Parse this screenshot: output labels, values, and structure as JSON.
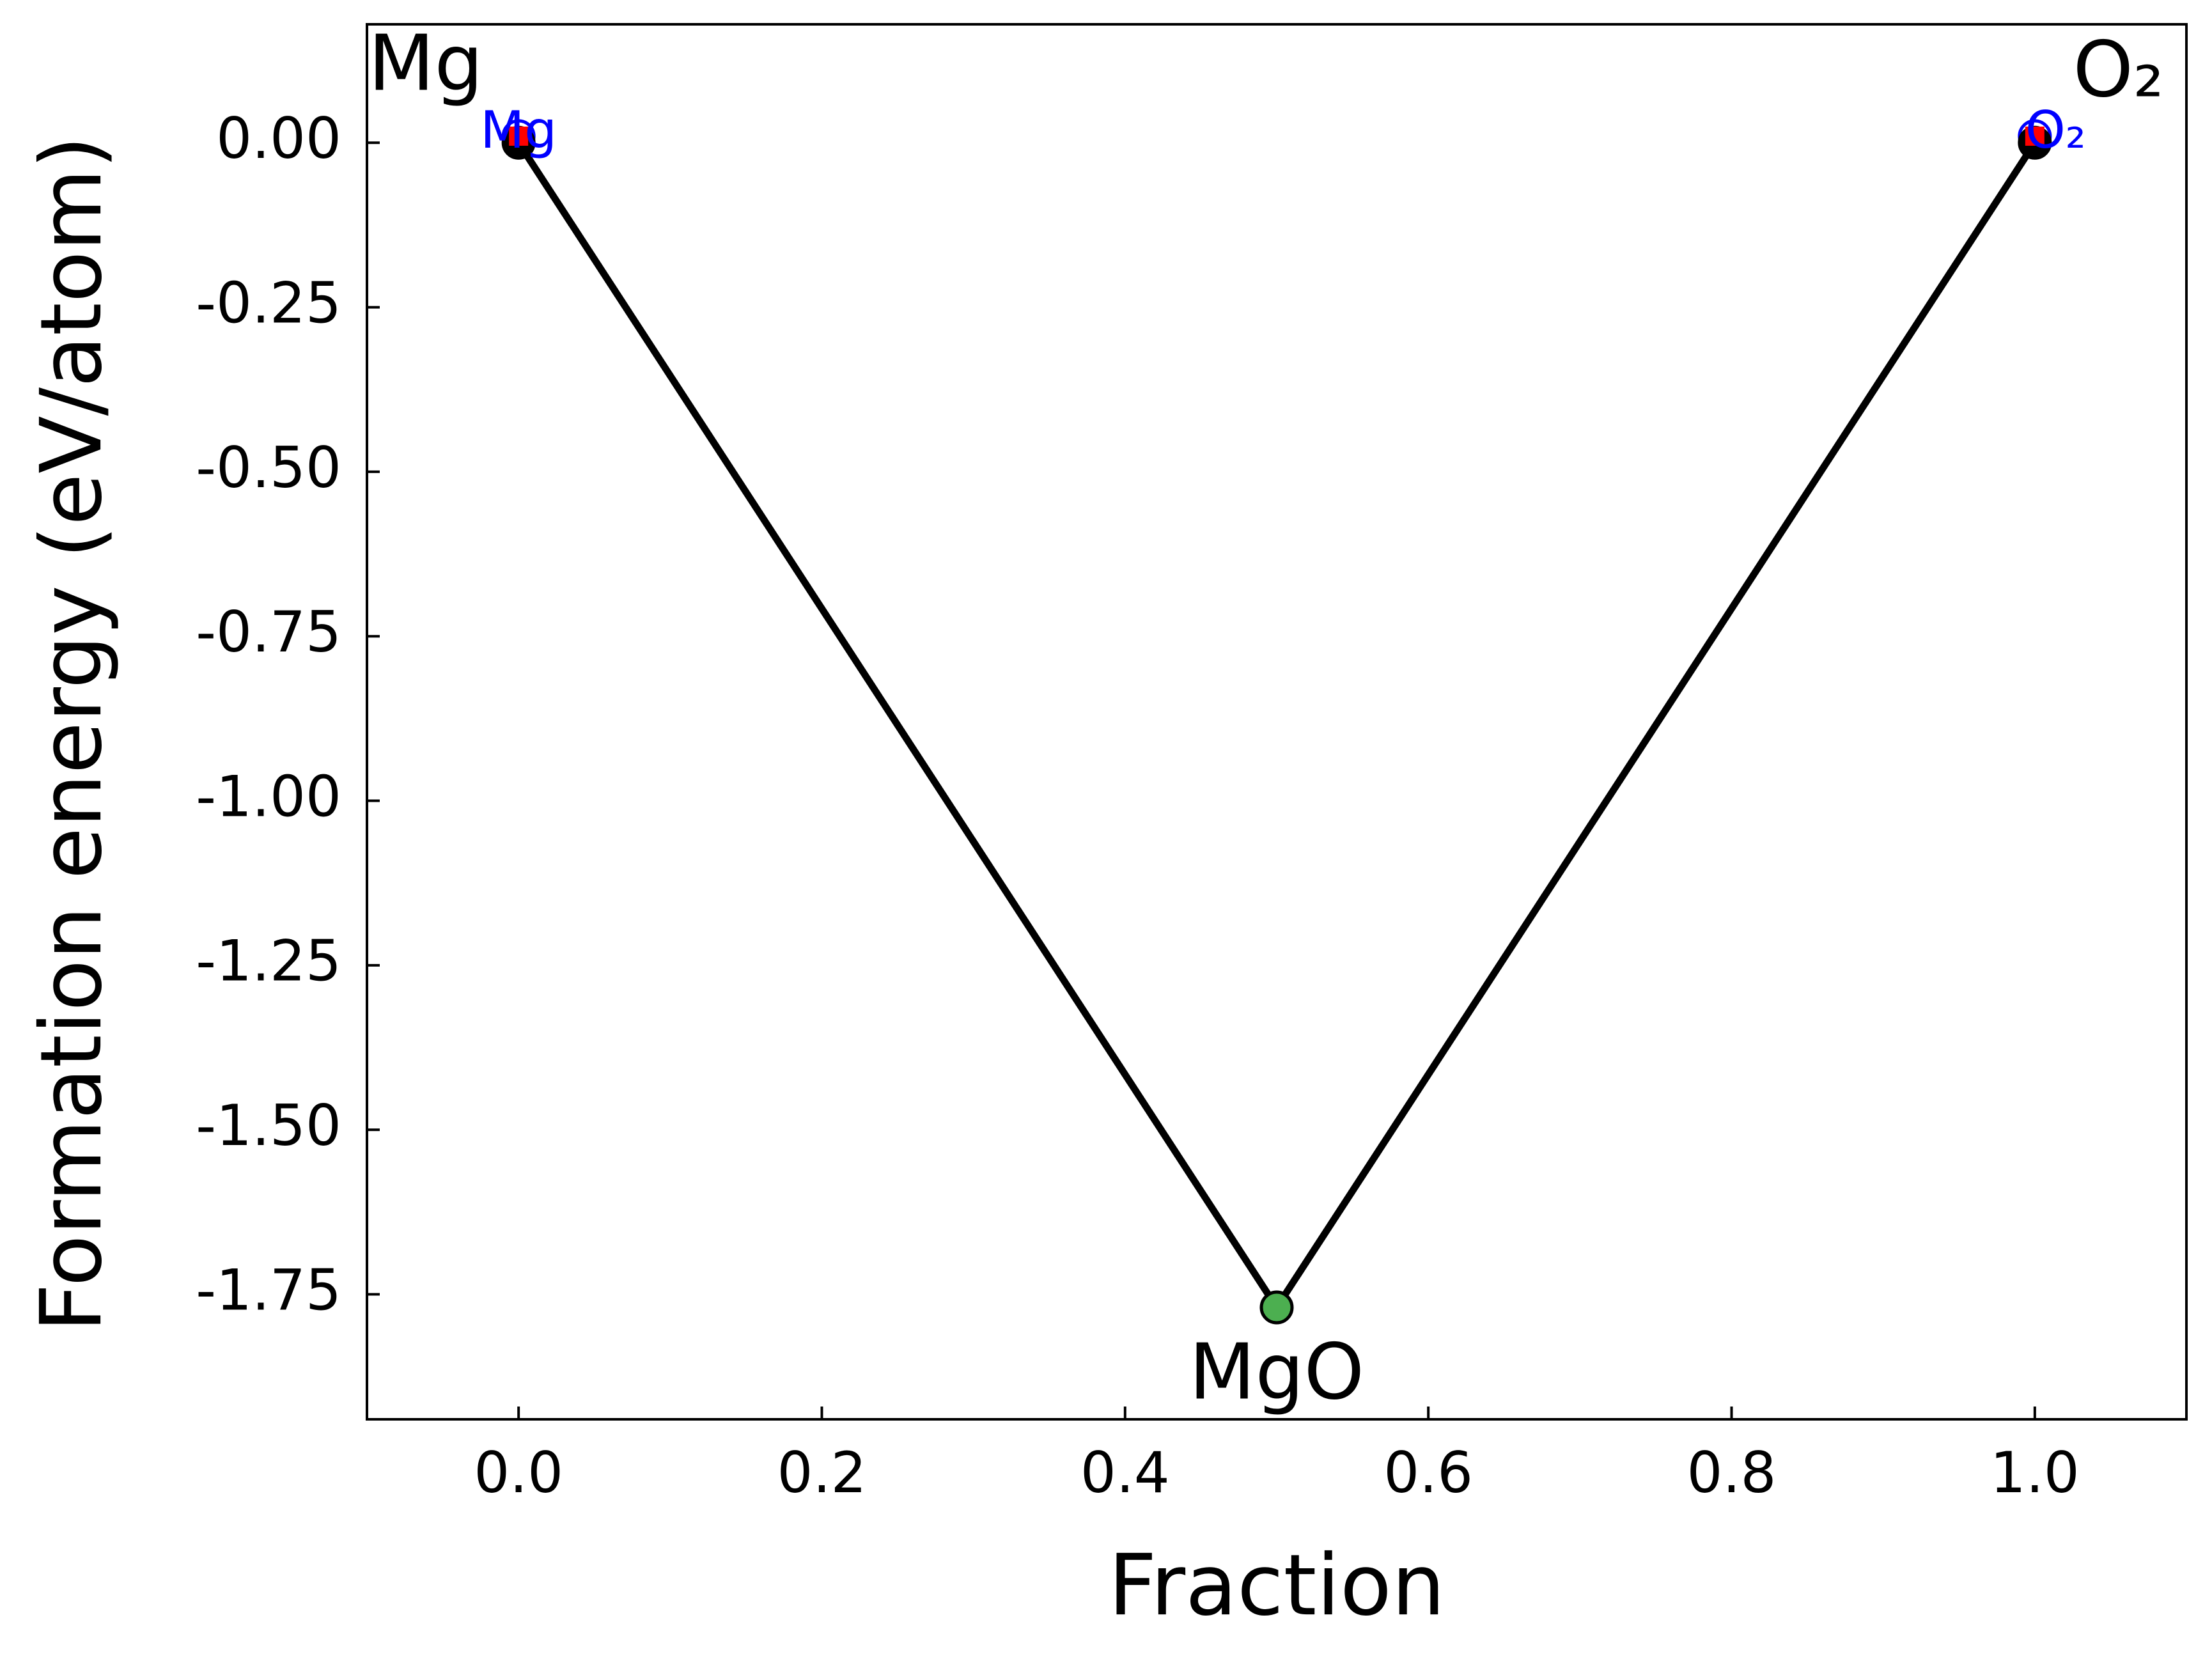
{
  "chart_data": {
    "type": "line",
    "xlabel": "Fraction",
    "ylabel": "Formation energy (eV/atom)",
    "xlim": [
      -0.1,
      1.1
    ],
    "ylim": [
      -1.94,
      0.18
    ],
    "xticks": [
      {
        "value": 0,
        "label": "0.0"
      },
      {
        "value": 0.2,
        "label": "0.2"
      },
      {
        "value": 0.4,
        "label": "0.4"
      },
      {
        "value": 0.6,
        "label": "0.6"
      },
      {
        "value": 0.8,
        "label": "0.8"
      },
      {
        "value": 1,
        "label": "1.0"
      }
    ],
    "yticks": [
      {
        "value": 0,
        "label": "0.00"
      },
      {
        "value": -0.25,
        "label": "-0.25"
      },
      {
        "value": -0.5,
        "label": "-0.50"
      },
      {
        "value": -0.75,
        "label": "-0.75"
      },
      {
        "value": -1,
        "label": "-1.00"
      },
      {
        "value": -1.25,
        "label": "-1.25"
      },
      {
        "value": -1.5,
        "label": "-1.50"
      },
      {
        "value": -1.75,
        "label": "-1.75"
      }
    ],
    "series": [
      {
        "color": "#000000",
        "x": [
          0,
          0.5,
          1
        ],
        "values": [
          0,
          -1.77,
          0
        ]
      }
    ],
    "points": [
      {
        "label": "Mg",
        "x": 0,
        "y": 0,
        "color": "#000000"
      },
      {
        "label": "MgO",
        "x": 0.5,
        "y": -1.77,
        "color": "#4caf50"
      },
      {
        "label": "O₂",
        "x": 1,
        "y": 0,
        "color": "#000000"
      }
    ],
    "reference": {
      "labels": [
        "Mg",
        "O₂"
      ],
      "x": [
        0,
        1
      ],
      "values": [
        0.01,
        0.01
      ],
      "color": "#ff0000",
      "label_color": "#0000ff"
    }
  }
}
